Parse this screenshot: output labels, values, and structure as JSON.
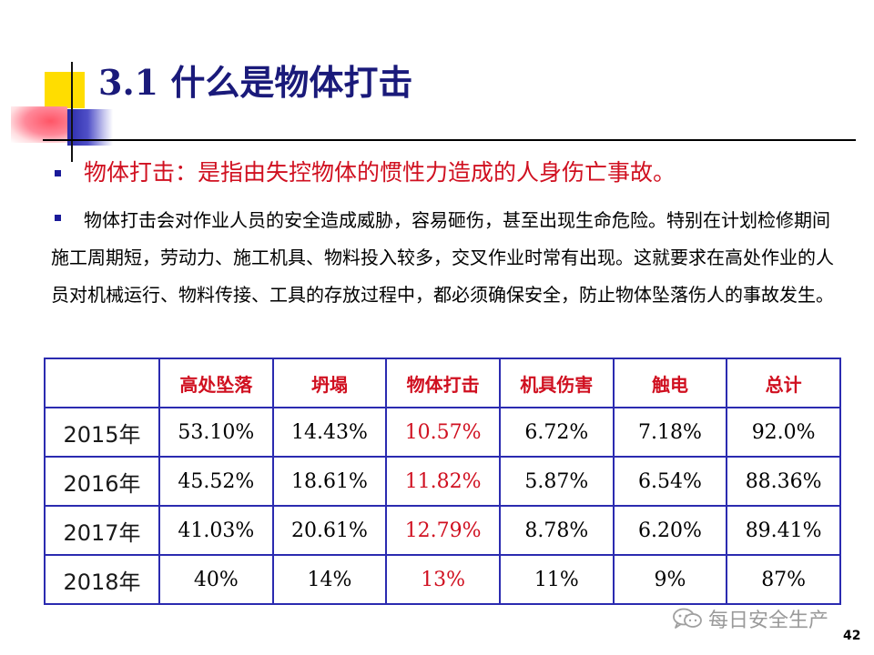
{
  "title": "3.1 什么是物体打击",
  "definition": "物体打击：是指由失控物体的惯性力造成的人身伤亡事故。",
  "paragraph": "物体打击会对作业人员的安全造成威胁，容易砸伤，甚至出现生命危险。特别在计划检修期间施工周期短，劳动力、施工机具、物料投入较多，交叉作业时常有出现。这就要求在高处作业的人员对机械运行、物料传接、工具的存放过程中，都必须确保安全，防止物体坠落伤人的事故发生。",
  "table": {
    "headers": [
      "",
      "高处坠落",
      "坍塌",
      "物体打击",
      "机具伤害",
      "触电",
      "总计"
    ],
    "rows": [
      [
        "2015年",
        "53.10%",
        "14.43%",
        "10.57%",
        "6.72%",
        "7.18%",
        "92.0%"
      ],
      [
        "2016年",
        "45.52%",
        "18.61%",
        "11.82%",
        "5.87%",
        "6.54%",
        "88.36%"
      ],
      [
        "2017年",
        "41.03%",
        "20.61%",
        "12.79%",
        "8.78%",
        "6.20%",
        "89.41%"
      ],
      [
        "2018年",
        "40%",
        "14%",
        "13%",
        "11%",
        "9%",
        "87%"
      ]
    ]
  },
  "watermark": "每日安全生产",
  "page_number": "42",
  "colors": {
    "title": "#1a1a7a",
    "definition": "#d01020",
    "table_border": "#2b2bb0",
    "highlight_column": "#d01020"
  }
}
